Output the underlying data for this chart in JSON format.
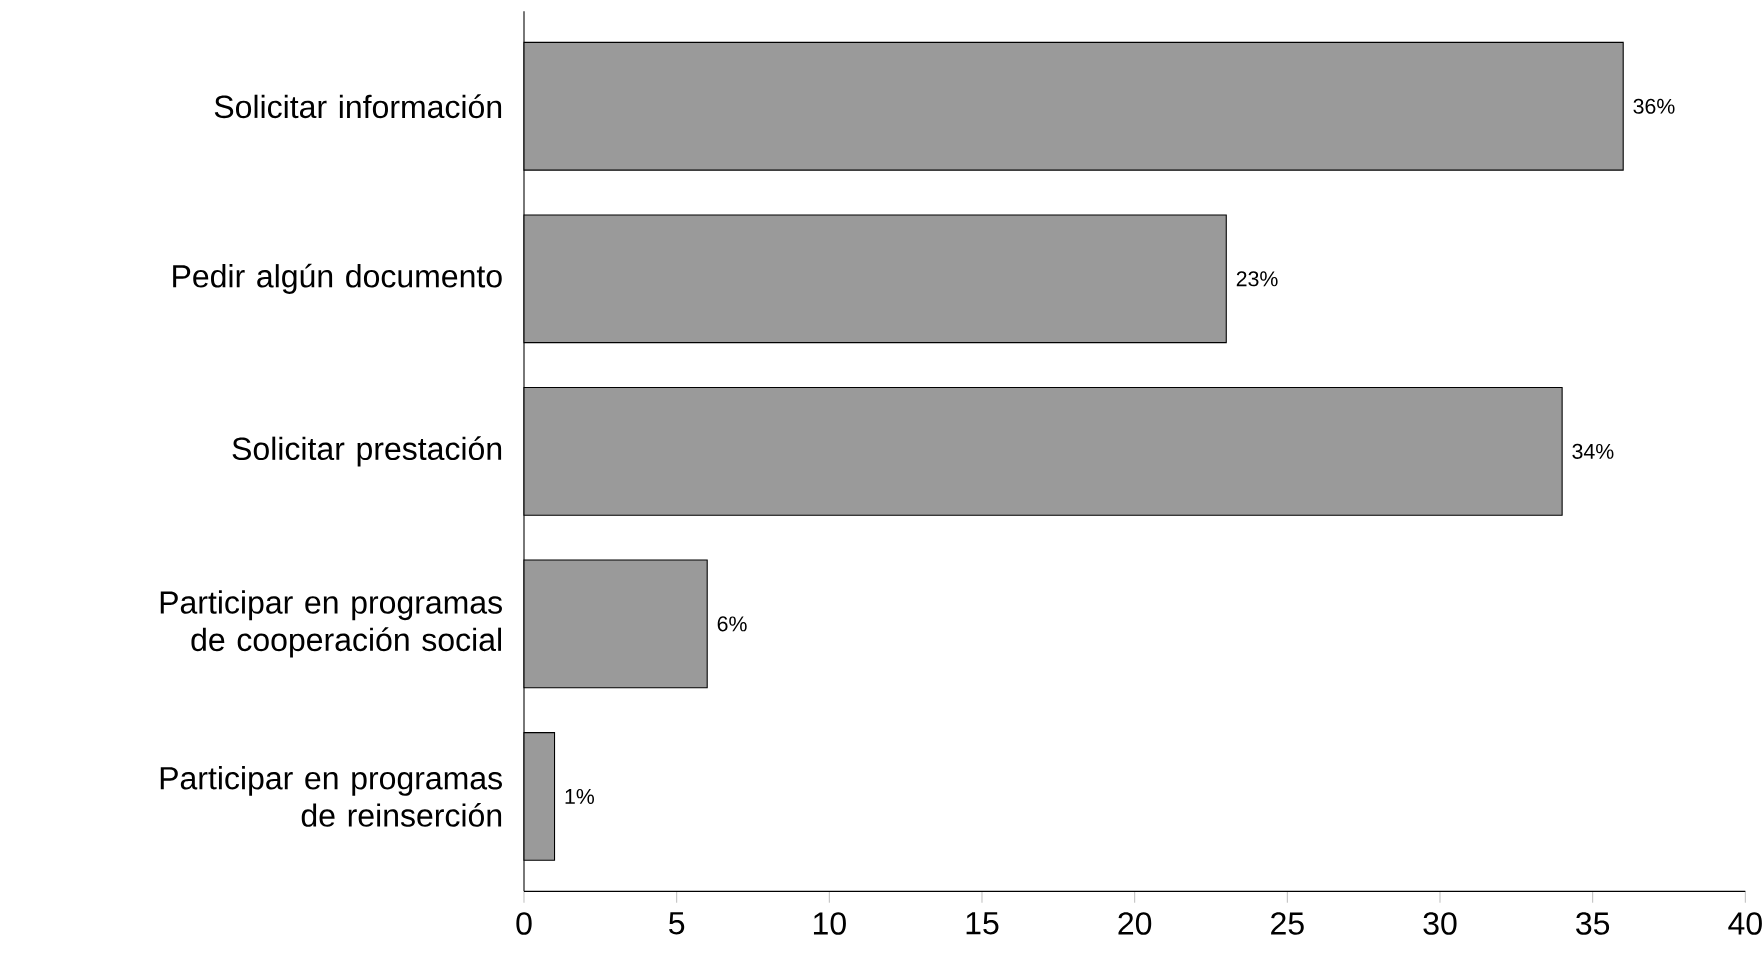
{
  "chart_data": {
    "type": "bar",
    "orientation": "horizontal",
    "categories": [
      "Solicitar información",
      "Pedir algún documento",
      "Solicitar prestación",
      "Participar en programas de cooperación social",
      "Participar en programas de reinserción"
    ],
    "values": [
      36,
      23,
      34,
      6,
      1
    ],
    "value_labels": [
      "36%",
      "23%",
      "34%",
      "6%",
      "1%"
    ],
    "color": "#9a9a9a",
    "xlim": [
      0,
      40
    ],
    "xticks": [
      0,
      5,
      10,
      15,
      20,
      25,
      30,
      35,
      40
    ]
  }
}
